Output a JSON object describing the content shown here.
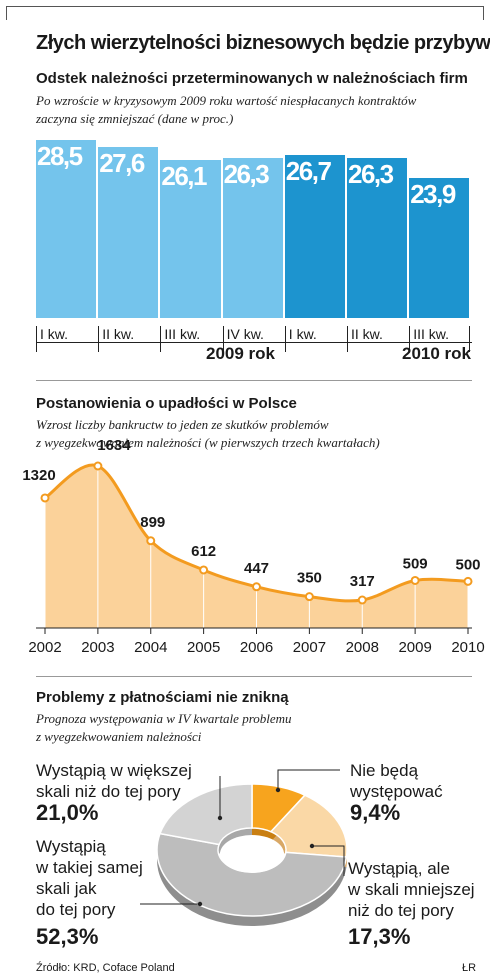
{
  "title": "Złych wierzytelności biznesowych będzie przybywać",
  "colors": {
    "bar_2009": "#74c4ec",
    "bar_2010": "#1d94cf",
    "line": "#f39b1f",
    "area": "#fbd29a",
    "pie_grey_light": "#d3d3d3",
    "pie_grey": "#bdbdbd",
    "pie_orange": "#f7a41e",
    "pie_peach": "#fad8a6"
  },
  "chart_data": [
    {
      "type": "bar",
      "title": "Odstek należności przeterminowanych w należnościach firm",
      "subtitle_lines": [
        "Po wzroście w kryzysowym 2009 roku wartość niespłacanych kontraktów",
        "zaczyna się zmniejszać (dane w proc.)"
      ],
      "categories": [
        "I kw.",
        "II kw.",
        "III kw.",
        "IV kw.",
        "I kw.",
        "II kw.",
        "III kw."
      ],
      "value_labels": [
        "28,5",
        "27,6",
        "26,1",
        "26,3",
        "26,7",
        "26,3",
        "23,9"
      ],
      "values": [
        28.5,
        27.6,
        26.1,
        26.3,
        26.7,
        26.3,
        23.9
      ],
      "groups": [
        {
          "label": "2009 rok",
          "categories": [
            "I kw.",
            "II kw.",
            "III kw.",
            "IV kw."
          ]
        },
        {
          "label": "2010 rok",
          "categories": [
            "I kw.",
            "II kw.",
            "III kw."
          ]
        }
      ]
    },
    {
      "type": "area",
      "title": "Postanowienia o upadłości w Polsce",
      "subtitle_lines": [
        "Wzrost liczby bankructw to jeden ze skutków problemów",
        "z wyegzekwowaniem należności (w pierwszych trzech kwartałach)"
      ],
      "x": [
        "2002",
        "2003",
        "2004",
        "2005",
        "2006",
        "2007",
        "2008",
        "2009",
        "2010"
      ],
      "values": [
        1320,
        1634,
        899,
        612,
        447,
        350,
        317,
        509,
        500
      ]
    },
    {
      "type": "pie",
      "title": "Problemy z płatnościami nie znikną",
      "subtitle_lines": [
        "Prognoza występowania w IV kwartale problemu",
        "z wyegzekwowaniem należności"
      ],
      "slices": [
        {
          "label_lines": [
            "Nie będą",
            "występować"
          ],
          "value": 9.4,
          "value_label": "9,4%"
        },
        {
          "label_lines": [
            "Wystąpią, ale",
            "w skali mniejszej",
            "niż do tej pory"
          ],
          "value": 17.3,
          "value_label": "17,3%"
        },
        {
          "label_lines": [
            "Wystąpią",
            "w takiej samej",
            "skali jak",
            "do tej pory"
          ],
          "value": 52.3,
          "value_label": "52,3%"
        },
        {
          "label_lines": [
            "Wystąpią w większej",
            "skali niż do tej pory"
          ],
          "value": 21.0,
          "value_label": "21,0%"
        }
      ]
    }
  ],
  "footer": {
    "source": "Źródło: KRD, Coface Poland",
    "credit": "ŁR"
  }
}
